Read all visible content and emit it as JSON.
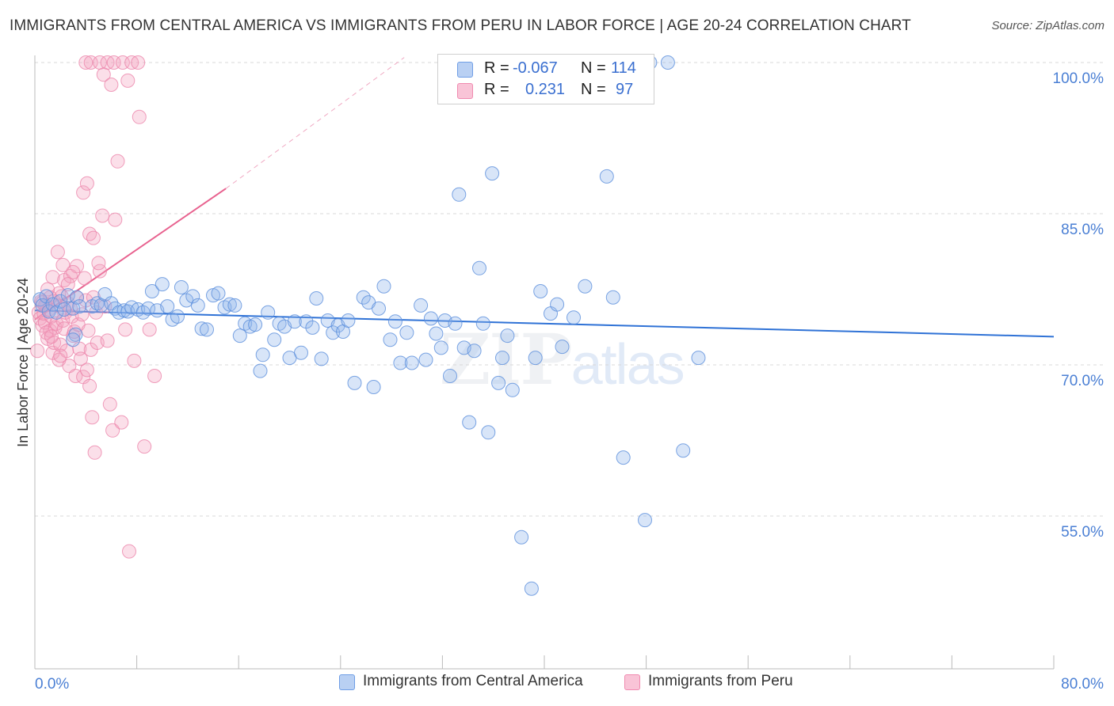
{
  "title": "IMMIGRANTS FROM CENTRAL AMERICA VS IMMIGRANTS FROM PERU IN LABOR FORCE | AGE 20-24 CORRELATION CHART",
  "source": "Source: ZipAtlas.com",
  "watermark": {
    "zip": "ZIP",
    "atlas": "atlas"
  },
  "legend": {
    "rows": [
      {
        "r_label": "R =",
        "r_value": "-0.067",
        "n_label": "N =",
        "n_value": "114"
      },
      {
        "r_label": "R =",
        "r_value": "0.231",
        "n_label": "N =",
        "n_value": "97"
      }
    ]
  },
  "bottom_legend": {
    "series1": "Immigrants from Central America",
    "series2": "Immigrants from Peru"
  },
  "colors": {
    "blue": "#6f9ee6",
    "blue_line": "#2f72d6",
    "pink": "#f08ab0",
    "pink_line": "#e8628f",
    "tick_text": "#4a7fd4"
  },
  "chart_data": {
    "type": "scatter",
    "title": "IMMIGRANTS FROM CENTRAL AMERICA VS IMMIGRANTS FROM PERU IN LABOR FORCE | AGE 20-24 CORRELATION CHART",
    "xlabel": "",
    "ylabel": "In Labor Force | Age 20-24",
    "xlim": [
      0,
      80
    ],
    "ylim": [
      40,
      102
    ],
    "x_tick_labels": [
      "0.0%",
      "80.0%"
    ],
    "y_ticks": [
      55,
      70,
      85,
      100
    ],
    "y_tick_labels": [
      "55.0%",
      "70.0%",
      "85.0%",
      "100.0%"
    ],
    "series": [
      {
        "name": "Immigrants from Central America",
        "color": "#6f9ee6",
        "r": -0.067,
        "n": 114,
        "trend": {
          "x": [
            0,
            80
          ],
          "y": [
            75.4,
            72.8
          ],
          "style": "solid"
        },
        "points": [
          [
            0.4,
            76.5
          ],
          [
            0.6,
            75.9
          ],
          [
            0.9,
            76.8
          ],
          [
            1.1,
            75.3
          ],
          [
            1.4,
            76.0
          ],
          [
            1.7,
            75.2
          ],
          [
            2.0,
            76.3
          ],
          [
            2.3,
            75.5
          ],
          [
            2.6,
            76.9
          ],
          [
            3.0,
            75.6
          ],
          [
            3.3,
            76.7
          ],
          [
            3.5,
            75.8
          ],
          [
            3.2,
            73.0
          ],
          [
            3.0,
            72.5
          ],
          [
            4.5,
            75.8
          ],
          [
            4.9,
            76.1
          ],
          [
            5.2,
            75.9
          ],
          [
            5.5,
            77.0
          ],
          [
            6.0,
            76.1
          ],
          [
            6.3,
            75.6
          ],
          [
            6.6,
            75.2
          ],
          [
            7.0,
            75.4
          ],
          [
            7.3,
            75.3
          ],
          [
            7.6,
            75.7
          ],
          [
            8.1,
            75.5
          ],
          [
            8.5,
            75.2
          ],
          [
            8.9,
            75.6
          ],
          [
            9.2,
            77.3
          ],
          [
            9.6,
            75.4
          ],
          [
            10.0,
            78.0
          ],
          [
            10.4,
            75.8
          ],
          [
            10.8,
            74.5
          ],
          [
            11.2,
            74.8
          ],
          [
            11.5,
            77.7
          ],
          [
            11.9,
            76.4
          ],
          [
            12.4,
            76.8
          ],
          [
            12.8,
            75.9
          ],
          [
            13.1,
            73.6
          ],
          [
            13.5,
            73.5
          ],
          [
            14.0,
            76.9
          ],
          [
            14.4,
            77.1
          ],
          [
            14.9,
            75.7
          ],
          [
            15.3,
            76.0
          ],
          [
            15.7,
            75.9
          ],
          [
            16.1,
            72.9
          ],
          [
            16.5,
            74.1
          ],
          [
            16.9,
            73.8
          ],
          [
            17.3,
            74.0
          ],
          [
            17.7,
            69.4
          ],
          [
            17.9,
            71.0
          ],
          [
            18.3,
            75.2
          ],
          [
            18.8,
            72.5
          ],
          [
            19.2,
            74.1
          ],
          [
            19.6,
            73.8
          ],
          [
            20.0,
            70.7
          ],
          [
            20.4,
            74.3
          ],
          [
            20.9,
            71.2
          ],
          [
            21.3,
            74.3
          ],
          [
            21.8,
            73.7
          ],
          [
            22.1,
            76.6
          ],
          [
            22.5,
            70.6
          ],
          [
            23.0,
            74.4
          ],
          [
            23.4,
            73.2
          ],
          [
            23.8,
            73.9
          ],
          [
            24.2,
            73.3
          ],
          [
            24.6,
            74.4
          ],
          [
            25.1,
            68.2
          ],
          [
            25.8,
            76.7
          ],
          [
            26.2,
            76.2
          ],
          [
            26.6,
            67.8
          ],
          [
            27.0,
            75.6
          ],
          [
            27.4,
            77.8
          ],
          [
            27.9,
            72.5
          ],
          [
            28.3,
            74.3
          ],
          [
            28.7,
            70.2
          ],
          [
            29.2,
            73.2
          ],
          [
            29.6,
            70.2
          ],
          [
            30.3,
            75.9
          ],
          [
            30.7,
            70.5
          ],
          [
            31.1,
            74.6
          ],
          [
            31.5,
            73.1
          ],
          [
            31.9,
            71.7
          ],
          [
            32.2,
            74.4
          ],
          [
            32.6,
            68.9
          ],
          [
            33.0,
            74.1
          ],
          [
            33.3,
            86.9
          ],
          [
            33.7,
            71.7
          ],
          [
            34.1,
            64.3
          ],
          [
            34.5,
            71.4
          ],
          [
            34.9,
            79.6
          ],
          [
            35.2,
            74.1
          ],
          [
            35.6,
            63.3
          ],
          [
            35.9,
            89.0
          ],
          [
            36.4,
            68.2
          ],
          [
            36.7,
            70.7
          ],
          [
            37.1,
            72.9
          ],
          [
            37.5,
            67.5
          ],
          [
            38.2,
            52.9
          ],
          [
            39.0,
            47.8
          ],
          [
            39.3,
            70.7
          ],
          [
            39.7,
            77.3
          ],
          [
            40.5,
            75.1
          ],
          [
            41.0,
            76.0
          ],
          [
            41.4,
            71.8
          ],
          [
            42.3,
            74.7
          ],
          [
            43.2,
            77.8
          ],
          [
            44.9,
            88.7
          ],
          [
            45.4,
            76.7
          ],
          [
            46.2,
            60.8
          ],
          [
            47.9,
            54.6
          ],
          [
            48.3,
            100.0
          ],
          [
            49.7,
            100.0
          ],
          [
            50.9,
            61.5
          ],
          [
            52.1,
            70.7
          ]
        ]
      },
      {
        "name": "Immigrants from Peru",
        "color": "#f08ab0",
        "r": 0.231,
        "n": 97,
        "trend": {
          "x": [
            0,
            15
          ],
          "y": [
            74.5,
            87.5
          ],
          "style": "solid",
          "dashed_extension": {
            "x": [
              15,
              29
            ],
            "y": [
              87.5,
              100.5
            ]
          }
        },
        "points": [
          [
            0.2,
            71.4
          ],
          [
            0.3,
            75.2
          ],
          [
            0.4,
            74.6
          ],
          [
            0.5,
            76.3
          ],
          [
            0.6,
            73.9
          ],
          [
            0.7,
            75.1
          ],
          [
            0.8,
            74.2
          ],
          [
            0.9,
            76.0
          ],
          [
            1.0,
            72.6
          ],
          [
            1.1,
            75.5
          ],
          [
            1.2,
            73.4
          ],
          [
            1.3,
            74.8
          ],
          [
            1.4,
            71.2
          ],
          [
            1.5,
            72.2
          ],
          [
            1.6,
            73.7
          ],
          [
            1.7,
            74.1
          ],
          [
            1.8,
            75.9
          ],
          [
            1.9,
            70.5
          ],
          [
            2.0,
            72.0
          ],
          [
            2.1,
            76.8
          ],
          [
            2.2,
            74.4
          ],
          [
            2.3,
            73.6
          ],
          [
            2.4,
            75.2
          ],
          [
            2.5,
            71.4
          ],
          [
            2.6,
            76.1
          ],
          [
            2.7,
            69.9
          ],
          [
            2.8,
            75.6
          ],
          [
            2.9,
            74.8
          ],
          [
            3.0,
            72.9
          ],
          [
            3.1,
            73.3
          ],
          [
            3.2,
            68.9
          ],
          [
            3.3,
            76.7
          ],
          [
            3.4,
            74.0
          ],
          [
            3.5,
            71.6
          ],
          [
            3.6,
            70.6
          ],
          [
            3.7,
            75.0
          ],
          [
            3.8,
            68.8
          ],
          [
            3.9,
            78.6
          ],
          [
            4.0,
            76.4
          ],
          [
            4.1,
            69.5
          ],
          [
            4.2,
            73.4
          ],
          [
            4.3,
            67.9
          ],
          [
            4.4,
            71.5
          ],
          [
            4.5,
            64.8
          ],
          [
            4.6,
            76.7
          ],
          [
            4.7,
            61.3
          ],
          [
            4.8,
            75.2
          ],
          [
            4.9,
            72.2
          ],
          [
            5.1,
            79.3
          ],
          [
            5.3,
            84.8
          ],
          [
            5.5,
            75.8
          ],
          [
            5.7,
            72.4
          ],
          [
            5.9,
            66.1
          ],
          [
            6.1,
            63.5
          ],
          [
            6.3,
            84.4
          ],
          [
            6.5,
            90.2
          ],
          [
            6.8,
            64.3
          ],
          [
            7.1,
            73.5
          ],
          [
            7.4,
            51.5
          ],
          [
            7.8,
            70.4
          ],
          [
            8.2,
            94.6
          ],
          [
            8.6,
            61.9
          ],
          [
            9.0,
            73.5
          ],
          [
            9.4,
            68.9
          ],
          [
            1.5,
            76.3
          ],
          [
            1.9,
            77.1
          ],
          [
            2.3,
            78.4
          ],
          [
            2.8,
            78.8
          ],
          [
            3.3,
            79.8
          ],
          [
            3.8,
            87.1
          ],
          [
            4.1,
            88.0
          ],
          [
            4.3,
            83.0
          ],
          [
            4.6,
            82.6
          ],
          [
            5.0,
            80.1
          ],
          [
            4.0,
            100.0
          ],
          [
            4.4,
            100.0
          ],
          [
            5.1,
            100.0
          ],
          [
            5.7,
            100.0
          ],
          [
            6.2,
            100.0
          ],
          [
            6.9,
            100.0
          ],
          [
            7.6,
            100.0
          ],
          [
            8.1,
            100.0
          ],
          [
            5.4,
            98.8
          ],
          [
            6.0,
            97.8
          ],
          [
            7.3,
            98.2
          ],
          [
            1.8,
            81.2
          ],
          [
            2.2,
            79.9
          ],
          [
            1.4,
            78.7
          ],
          [
            1.2,
            76.7
          ],
          [
            1.0,
            77.5
          ],
          [
            0.8,
            75.9
          ],
          [
            0.6,
            76.2
          ],
          [
            0.9,
            73.2
          ],
          [
            1.3,
            72.8
          ],
          [
            2.0,
            70.9
          ],
          [
            2.6,
            78.0
          ],
          [
            3.0,
            79.2
          ]
        ]
      }
    ]
  }
}
